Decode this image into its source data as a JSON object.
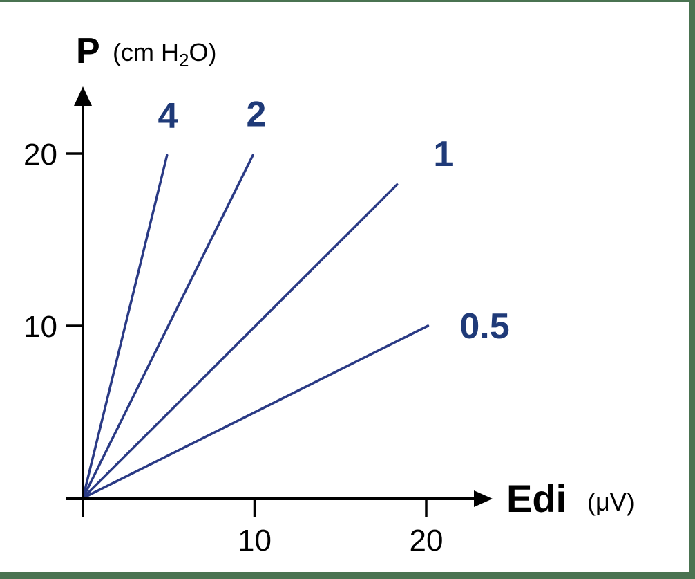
{
  "figure": {
    "border_color": "#4a7351",
    "background_color": "#ffffff"
  },
  "chart_data": {
    "type": "line",
    "title": "",
    "ylabel": "P",
    "y_unit_prefix": "(cm H",
    "y_unit_sub": "2",
    "y_unit_suffix": "O)",
    "xlabel": "Edi",
    "x_unit": "(μV)",
    "xlim": [
      0,
      24
    ],
    "ylim": [
      0,
      24
    ],
    "x_ticks": [
      10,
      20
    ],
    "y_ticks": [
      10,
      20
    ],
    "grid": false,
    "legend": "labels-at-line-ends",
    "line_color": "#2a3a85",
    "label_color": "#1f3a78",
    "axis_color": "#000000",
    "series": [
      {
        "label": "4",
        "slope": 4,
        "x": [
          0,
          4.9
        ],
        "y": [
          0,
          19.9
        ],
        "label_at": {
          "x": 4.95,
          "y": 22.2
        }
      },
      {
        "label": "2",
        "slope": 2,
        "x": [
          0,
          9.9
        ],
        "y": [
          0,
          19.9
        ],
        "label_at": {
          "x": 10.1,
          "y": 22.3
        }
      },
      {
        "label": "1",
        "slope": 1,
        "x": [
          0,
          18.3
        ],
        "y": [
          0,
          18.2
        ],
        "label_at": {
          "x": 21.0,
          "y": 20.0
        }
      },
      {
        "label": "0.5",
        "slope": 0.5,
        "x": [
          0,
          20.1
        ],
        "y": [
          0,
          10.0
        ],
        "label_at": {
          "x": 23.4,
          "y": 10.0
        }
      }
    ]
  }
}
